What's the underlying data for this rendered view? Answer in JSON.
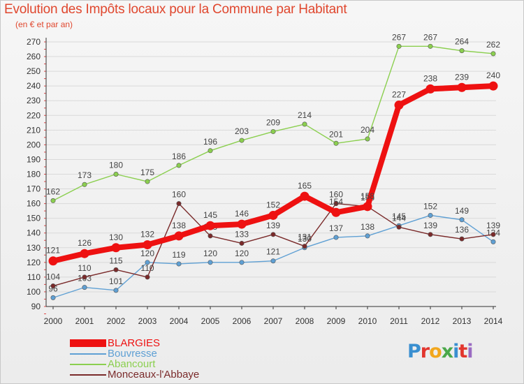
{
  "header": {
    "title": "Evolution des Impôts locaux pour la Commune par Habitant",
    "subtitle": "(en € et par an)"
  },
  "colors": {
    "title": "#e0472e",
    "axis": "#333333",
    "grid": "#d9d9d9",
    "label": "#444444"
  },
  "logo": {
    "text": "Proxiti",
    "letters": [
      {
        "ch": "P",
        "color": "#3a8fd0"
      },
      {
        "ch": "r",
        "color": "#e2362e"
      },
      {
        "ch": "o",
        "color": "#f2a71d"
      },
      {
        "ch": "x",
        "color": "#4aa84a"
      },
      {
        "ch": "i",
        "color": "#3a8fd0"
      },
      {
        "ch": "t",
        "color": "#e2362e"
      },
      {
        "ch": "i",
        "color": "#9a6bc2"
      }
    ]
  },
  "chart_data": {
    "type": "line",
    "title": "Evolution des Impôts locaux pour la Commune par Habitant",
    "subtitle": "(en € et par an)",
    "xlabel": "",
    "ylabel": "",
    "x": [
      "2000",
      "2001",
      "2002",
      "2003",
      "2004",
      "2005",
      "2006",
      "2007",
      "2008",
      "2009",
      "2010",
      "2011",
      "2012",
      "2013",
      "2014"
    ],
    "ylim": [
      90,
      270
    ],
    "yticks": [
      90,
      100,
      110,
      120,
      130,
      140,
      150,
      160,
      170,
      180,
      190,
      200,
      210,
      220,
      230,
      240,
      250,
      260,
      270
    ],
    "grid": "horizontal",
    "legend_position": "bottom-left",
    "series": [
      {
        "name": "BLARGIES",
        "color": "#ee1111",
        "values": [
          121,
          126,
          130,
          132,
          138,
          145,
          146,
          152,
          165,
          154,
          158,
          227,
          238,
          239,
          240
        ],
        "labels": [
          "121",
          "126",
          "130",
          "132",
          "138",
          "145",
          "146",
          "152",
          "165",
          "154",
          "158",
          "227",
          "238",
          "239",
          "240"
        ],
        "emphasis": true
      },
      {
        "name": "Bouvresse",
        "color": "#5fa0d4",
        "values": [
          96,
          103,
          101,
          120,
          119,
          120,
          120,
          121,
          130,
          137,
          138,
          145,
          152,
          149,
          134
        ],
        "labels": [
          "96",
          "103",
          "101",
          "120",
          "119",
          "120",
          "120",
          "121",
          "130",
          "137",
          "138",
          "145",
          "152",
          "149",
          "134"
        ]
      },
      {
        "name": "Abancourt",
        "color": "#8bcf4f",
        "values": [
          162,
          173,
          180,
          175,
          186,
          196,
          203,
          209,
          214,
          201,
          204,
          267,
          267,
          264,
          262
        ],
        "labels": [
          "162",
          "173",
          "180",
          "175",
          "186",
          "196",
          "203",
          "209",
          "214",
          "201",
          "204",
          "267",
          "267",
          "264",
          "262"
        ]
      },
      {
        "name": "Monceaux-l'Abbaye",
        "color": "#7a2a2a",
        "values": [
          104,
          110,
          115,
          110,
          160,
          138,
          133,
          139,
          131,
          160,
          158,
          144,
          139,
          136,
          139
        ],
        "labels": [
          "104",
          "110",
          "115",
          "110",
          "160",
          "138",
          "133",
          "139",
          "131",
          "160",
          "158",
          "144",
          "139",
          "136",
          "139"
        ]
      }
    ]
  }
}
